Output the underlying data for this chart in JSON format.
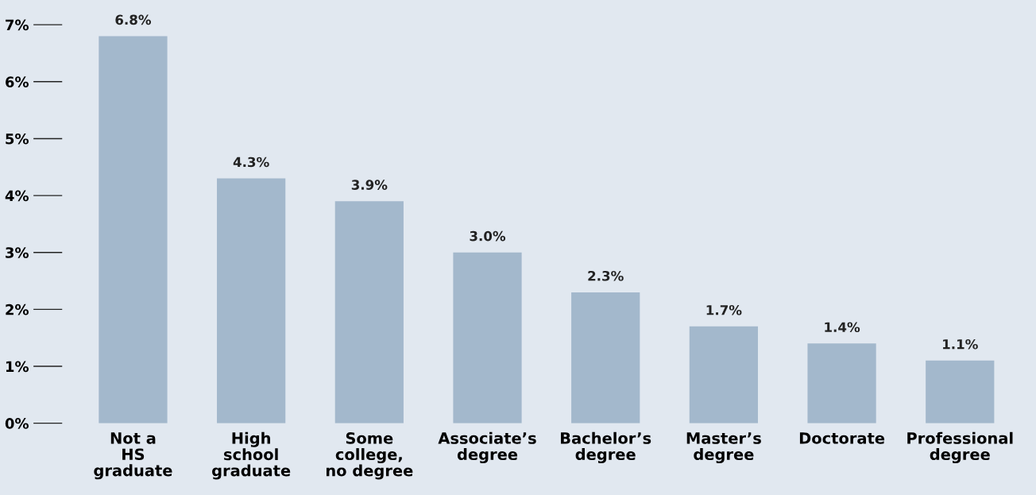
{
  "chart_data": {
    "type": "bar",
    "categories": [
      "Not a\nHS\ngraduate",
      "High\nschool\ngraduate",
      "Some\ncollege,\nno degree",
      "Associate’s\ndegree",
      "Bachelor’s\ndegree",
      "Master’s\ndegree",
      "Doctorate",
      "Professional\ndegree"
    ],
    "values": [
      6.8,
      4.3,
      3.9,
      3.0,
      2.3,
      1.7,
      1.4,
      1.1
    ],
    "value_labels": [
      "6.8%",
      "4.3%",
      "3.9%",
      "3.0%",
      "2.3%",
      "1.7%",
      "1.4%",
      "1.1%"
    ],
    "color": "#a3b8cc",
    "ylim": [
      0,
      7
    ],
    "yticks": [
      {
        "value": 0,
        "label": "0%"
      },
      {
        "value": 1,
        "label": "1%"
      },
      {
        "value": 2,
        "label": "2%"
      },
      {
        "value": 3,
        "label": "3%"
      },
      {
        "value": 4,
        "label": "4%"
      },
      {
        "value": 5,
        "label": "5%"
      },
      {
        "value": 6,
        "label": "6%"
      },
      {
        "value": 7,
        "label": "7%"
      }
    ],
    "grid": false
  }
}
